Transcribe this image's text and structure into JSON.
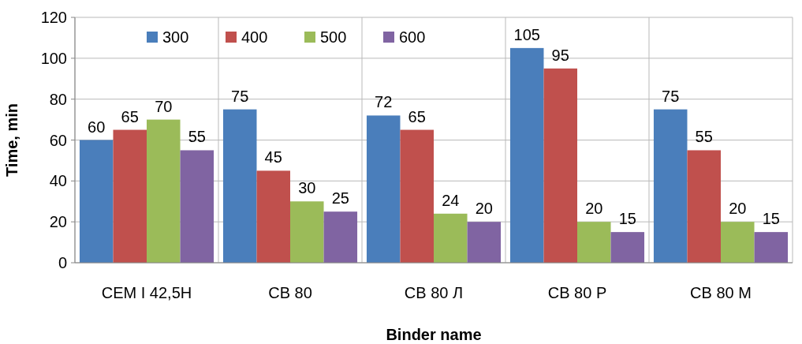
{
  "chart_data": {
    "type": "bar",
    "xlabel": "Binder name",
    "ylabel": "Time, min",
    "categories": [
      "CEM I 42,5Н",
      "СВ 80",
      "СВ 80 Л",
      "СВ 80 Р",
      "СВ 80 М"
    ],
    "series": [
      {
        "name": "300",
        "color": "#4a7ebb",
        "values": [
          60,
          75,
          72,
          105,
          75
        ]
      },
      {
        "name": "400",
        "color": "#c0504d",
        "values": [
          65,
          45,
          65,
          95,
          55
        ]
      },
      {
        "name": "500",
        "color": "#9bbb59",
        "values": [
          70,
          30,
          24,
          20,
          20
        ]
      },
      {
        "name": "600",
        "color": "#8064a2",
        "values": [
          55,
          25,
          20,
          15,
          15
        ]
      }
    ],
    "ylim": [
      0,
      120
    ],
    "yticks": [
      0,
      20,
      40,
      60,
      80,
      100,
      120
    ],
    "grid": true,
    "legend": "top",
    "data_labels": true
  }
}
